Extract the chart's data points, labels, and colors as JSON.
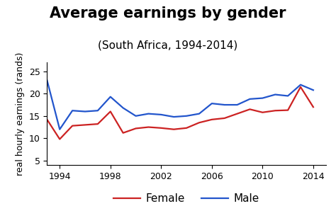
{
  "title": "Average earnings by gender",
  "subtitle": "(South Africa, 1994-2014)",
  "ylabel": "real hourly earnings (rands)",
  "ylim": [
    4,
    27
  ],
  "yticks": [
    5,
    10,
    15,
    20,
    25
  ],
  "xlim": [
    1993,
    2015
  ],
  "xticks": [
    1994,
    1998,
    2002,
    2006,
    2010,
    2014
  ],
  "female_color": "#cc2222",
  "male_color": "#2255cc",
  "line_width": 1.6,
  "years": [
    1993,
    1994,
    1995,
    1996,
    1997,
    1998,
    1999,
    2000,
    2001,
    2002,
    2003,
    2004,
    2005,
    2006,
    2007,
    2008,
    2009,
    2010,
    2011,
    2012,
    2013,
    2014
  ],
  "female": [
    14.2,
    9.8,
    12.8,
    13.0,
    13.2,
    16.0,
    11.2,
    12.2,
    12.5,
    12.3,
    12.0,
    12.3,
    13.5,
    14.2,
    14.5,
    15.5,
    16.5,
    15.8,
    16.2,
    16.3,
    21.5,
    17.0
  ],
  "male": [
    23.0,
    12.0,
    16.2,
    16.0,
    16.2,
    19.3,
    16.8,
    15.0,
    15.5,
    15.3,
    14.8,
    15.0,
    15.5,
    17.8,
    17.5,
    17.5,
    18.8,
    19.0,
    19.8,
    19.5,
    22.0,
    20.8
  ],
  "legend_female": "Female",
  "legend_male": "Male",
  "title_fontsize": 15,
  "subtitle_fontsize": 11,
  "ylabel_fontsize": 9,
  "tick_fontsize": 9,
  "legend_fontsize": 11
}
